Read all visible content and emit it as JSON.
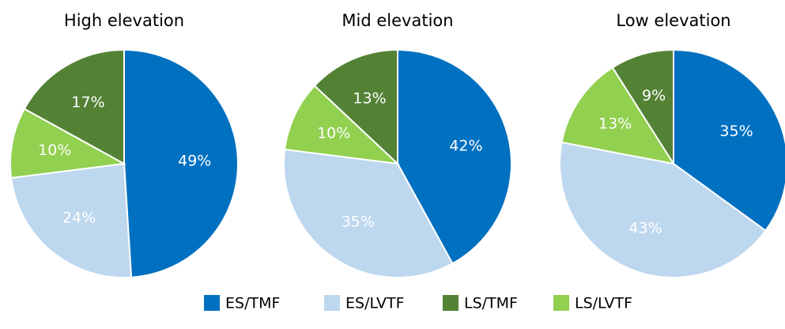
{
  "chart_data": [
    {
      "type": "pie",
      "title": "High elevation",
      "categories": [
        "ES/TMF",
        "ES/LVTF",
        "LS/TMF",
        "LS/LVTF"
      ],
      "values": [
        49,
        24,
        17,
        10
      ],
      "value_labels": [
        "49%",
        "24%",
        "17%",
        "10%"
      ],
      "colors": [
        "#0070c0",
        "#bdd7ee",
        "#548235",
        "#92d050"
      ]
    },
    {
      "type": "pie",
      "title": "Mid elevation",
      "categories": [
        "ES/TMF",
        "ES/LVTF",
        "LS/TMF",
        "LS/LVTF"
      ],
      "values": [
        42,
        35,
        13,
        10
      ],
      "value_labels": [
        "42%",
        "35%",
        "13%",
        "10%"
      ],
      "colors": [
        "#0070c0",
        "#bdd7ee",
        "#548235",
        "#92d050"
      ]
    },
    {
      "type": "pie",
      "title": "Low elevation",
      "categories": [
        "ES/TMF",
        "ES/LVTF",
        "LS/TMF",
        "LS/LVTF"
      ],
      "values": [
        35,
        43,
        9,
        13
      ],
      "value_labels": [
        "35%",
        "43%",
        "9%",
        "13%"
      ],
      "colors": [
        "#0070c0",
        "#bdd7ee",
        "#548235",
        "#92d050"
      ]
    }
  ]
}
